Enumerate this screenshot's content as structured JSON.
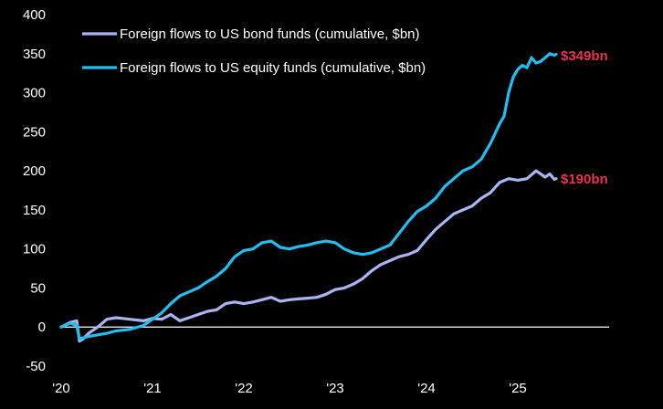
{
  "chart_data": {
    "type": "line",
    "title": "",
    "xlabel": "",
    "ylabel": "",
    "ylim": [
      -50,
      400
    ],
    "xlim": [
      2020.0,
      2026.0
    ],
    "grid": false,
    "legend_position": "top-left",
    "y_ticks": [
      "400",
      "350",
      "300",
      "250",
      "200",
      "150",
      "100",
      "50",
      "0",
      "-50"
    ],
    "x_ticks": [
      "'20",
      "'21",
      "'22",
      "'23",
      "'24",
      "'25"
    ],
    "series": [
      {
        "name": "Foreign flows to US bond funds (cumulative, $bn)",
        "color": "#a9b4f2",
        "end_label": "$190bn",
        "x": [
          2020.0,
          2020.1,
          2020.17,
          2020.2,
          2020.24,
          2020.3,
          2020.4,
          2020.5,
          2020.6,
          2020.75,
          2020.9,
          2021.0,
          2021.1,
          2021.2,
          2021.3,
          2021.4,
          2021.5,
          2021.6,
          2021.7,
          2021.8,
          2021.9,
          2022.0,
          2022.1,
          2022.2,
          2022.3,
          2022.4,
          2022.5,
          2022.6,
          2022.7,
          2022.8,
          2022.9,
          2023.0,
          2023.1,
          2023.2,
          2023.3,
          2023.4,
          2023.5,
          2023.6,
          2023.7,
          2023.8,
          2023.9,
          2024.0,
          2024.1,
          2024.2,
          2024.3,
          2024.4,
          2024.5,
          2024.6,
          2024.7,
          2024.8,
          2024.9,
          2025.0,
          2025.1,
          2025.2,
          2025.3,
          2025.35,
          2025.4,
          2025.42
        ],
        "values": [
          0,
          6,
          8,
          -18,
          -15,
          -8,
          0,
          10,
          12,
          10,
          8,
          11,
          10,
          16,
          8,
          12,
          16,
          20,
          22,
          30,
          32,
          30,
          32,
          35,
          38,
          33,
          35,
          36,
          37,
          38,
          42,
          48,
          50,
          55,
          62,
          72,
          80,
          85,
          90,
          93,
          98,
          112,
          125,
          135,
          145,
          150,
          155,
          165,
          172,
          185,
          190,
          188,
          190,
          200,
          192,
          196,
          189,
          190
        ]
      },
      {
        "name": "Foreign flows to US equity funds (cumulative, $bn)",
        "color": "#22bef0",
        "end_label": "$349bn",
        "x": [
          2020.0,
          2020.1,
          2020.17,
          2020.2,
          2020.3,
          2020.4,
          2020.5,
          2020.6,
          2020.75,
          2020.9,
          2021.0,
          2021.1,
          2021.2,
          2021.3,
          2021.4,
          2021.5,
          2021.6,
          2021.7,
          2021.8,
          2021.9,
          2022.0,
          2022.1,
          2022.2,
          2022.3,
          2022.4,
          2022.5,
          2022.6,
          2022.7,
          2022.8,
          2022.9,
          2023.0,
          2023.1,
          2023.2,
          2023.3,
          2023.4,
          2023.5,
          2023.6,
          2023.7,
          2023.8,
          2023.9,
          2024.0,
          2024.1,
          2024.2,
          2024.3,
          2024.4,
          2024.5,
          2024.6,
          2024.7,
          2024.8,
          2024.85,
          2024.9,
          2024.95,
          2025.0,
          2025.05,
          2025.1,
          2025.15,
          2025.2,
          2025.25,
          2025.3,
          2025.35,
          2025.4,
          2025.42
        ],
        "values": [
          0,
          5,
          2,
          -15,
          -12,
          -10,
          -8,
          -5,
          -3,
          2,
          10,
          18,
          30,
          40,
          45,
          50,
          58,
          65,
          75,
          90,
          98,
          100,
          108,
          110,
          102,
          100,
          103,
          105,
          108,
          110,
          108,
          100,
          95,
          93,
          95,
          100,
          105,
          120,
          135,
          148,
          155,
          165,
          180,
          190,
          200,
          205,
          215,
          235,
          260,
          270,
          300,
          320,
          330,
          335,
          332,
          345,
          338,
          340,
          345,
          350,
          348,
          349
        ]
      }
    ]
  }
}
